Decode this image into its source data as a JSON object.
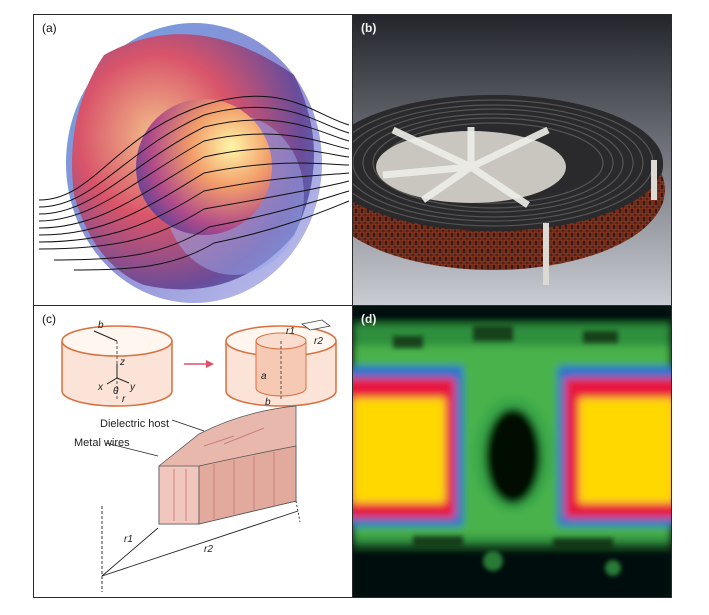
{
  "panels": {
    "a": {
      "label": "(a)"
    },
    "b": {
      "label": "(b)"
    },
    "c": {
      "label": "(c)",
      "dielectric_host": "Dielectric host",
      "metal_wires": "Metal wires",
      "var_b": "b",
      "var_z": "z",
      "var_x": "x",
      "var_y": "y",
      "var_theta": "θ",
      "var_r": "r",
      "var_a": "a",
      "var_b2": "b",
      "var_r1_top": "r1",
      "var_r2_top": "r2",
      "var_r1": "r1",
      "var_r2": "r2"
    },
    "d": {
      "label": "(d)"
    }
  },
  "colors": {
    "cylinder_stroke": "#d9703f",
    "cylinder_fill": "#f6d3c2",
    "wedge_fill": "#e9b8ad",
    "arrow": "#e0506a",
    "map_yellow": "#ffd800",
    "map_red": "#e8143c",
    "map_green": "#3aa84a"
  }
}
